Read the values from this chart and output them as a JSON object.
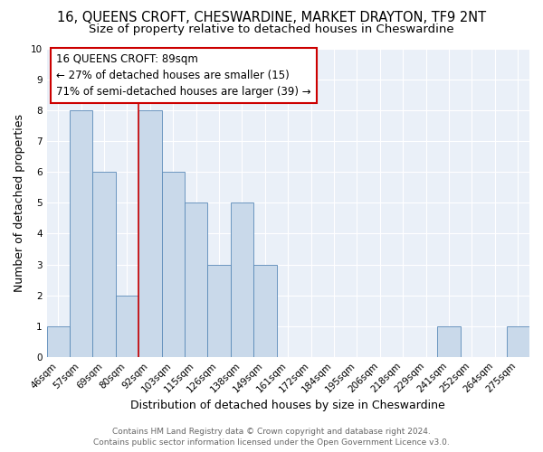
{
  "title": "16, QUEENS CROFT, CHESWARDINE, MARKET DRAYTON, TF9 2NT",
  "subtitle": "Size of property relative to detached houses in Cheswardine",
  "xlabel": "Distribution of detached houses by size in Cheswardine",
  "ylabel": "Number of detached properties",
  "categories": [
    "46sqm",
    "57sqm",
    "69sqm",
    "80sqm",
    "92sqm",
    "103sqm",
    "115sqm",
    "126sqm",
    "138sqm",
    "149sqm",
    "161sqm",
    "172sqm",
    "184sqm",
    "195sqm",
    "206sqm",
    "218sqm",
    "229sqm",
    "241sqm",
    "252sqm",
    "264sqm",
    "275sqm"
  ],
  "values": [
    1,
    8,
    6,
    2,
    8,
    6,
    5,
    3,
    5,
    3,
    0,
    0,
    0,
    0,
    0,
    0,
    0,
    1,
    0,
    0,
    1
  ],
  "bar_color": "#c9d9ea",
  "bar_edge_color": "#5a8ab8",
  "red_line_x": 4,
  "annotation_title": "16 QUEENS CROFT: 89sqm",
  "annotation_line1": "← 27% of detached houses are smaller (15)",
  "annotation_line2": "71% of semi-detached houses are larger (39) →",
  "annotation_box_color": "#ffffff",
  "annotation_box_edge": "#cc0000",
  "ylim": [
    0,
    10
  ],
  "yticks": [
    0,
    1,
    2,
    3,
    4,
    5,
    6,
    7,
    8,
    9,
    10
  ],
  "footer_line1": "Contains HM Land Registry data © Crown copyright and database right 2024.",
  "footer_line2": "Contains public sector information licensed under the Open Government Licence v3.0.",
  "bg_color": "#eaf0f8",
  "grid_color": "#ffffff",
  "title_fontsize": 10.5,
  "subtitle_fontsize": 9.5,
  "ylabel_fontsize": 9,
  "xlabel_fontsize": 9,
  "tick_fontsize": 7.5,
  "annotation_fontsize": 8.5,
  "footer_fontsize": 6.5
}
